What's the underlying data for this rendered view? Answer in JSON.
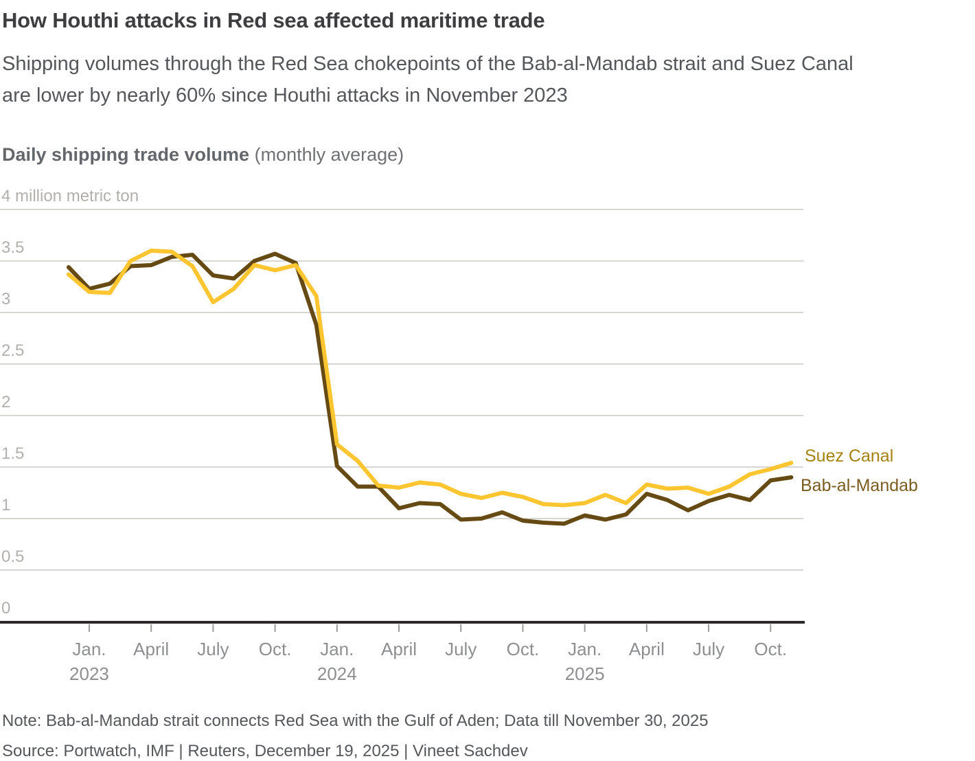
{
  "header": {
    "title": "How Houthi attacks in Red sea affected maritime trade",
    "subtitle_line1": "Shipping volumes through the Red Sea chokepoints of the Bab-al-Mandab strait and Suez Canal",
    "subtitle_line2": "are lower by nearly 60% since Houthi attacks in November 2023"
  },
  "chart_heading": {
    "bold": "Daily shipping trade volume",
    "normal": " (monthly average)"
  },
  "y_axis": {
    "labels": [
      {
        "text": "4 million metric ton",
        "value": 4
      },
      {
        "text": "3.5",
        "value": 3.5
      },
      {
        "text": "3",
        "value": 3
      },
      {
        "text": "2.5",
        "value": 2.5
      },
      {
        "text": "2",
        "value": 2
      },
      {
        "text": "1.5",
        "value": 1.5
      },
      {
        "text": "1",
        "value": 1
      },
      {
        "text": "0.5",
        "value": 0.5
      },
      {
        "text": "0",
        "value": 0
      }
    ]
  },
  "x_axis": {
    "tick_labels": [
      "Jan.",
      "April",
      "July",
      "Oct.",
      "Jan.",
      "April",
      "July",
      "Oct.",
      "Jan.",
      "April",
      "July",
      "Oct."
    ],
    "tick_month_indices": [
      1,
      4,
      7,
      10,
      13,
      16,
      19,
      22,
      25,
      28,
      31,
      34
    ],
    "years": [
      {
        "label": "2023",
        "month_index": 1
      },
      {
        "label": "2024",
        "month_index": 13
      },
      {
        "label": "2025",
        "month_index": 25
      }
    ]
  },
  "legend": [
    {
      "label": "Suez Canal",
      "color": "#a5820f"
    },
    {
      "label": "Bab-al-Mandab",
      "color": "#7a5c20"
    }
  ],
  "footer": {
    "note": "Note: Bab-al-Mandab strait connects Red Sea with the Gulf of Aden; Data till November 30, 2025",
    "source": "Source: Portwatch, IMF | Reuters, December 19, 2025  | Vineet Sachdev"
  },
  "chart_data": {
    "type": "line",
    "title": "Daily shipping trade volume (monthly average)",
    "ylabel": "million metric ton",
    "ylim": [
      0,
      4
    ],
    "y_gridlines": [
      0.5,
      1,
      1.5,
      2,
      2.5,
      3,
      3.5,
      4
    ],
    "grid": true,
    "legend_position": "right-of-line-ends",
    "x": [
      "Dec 2022",
      "Jan 2023",
      "Feb 2023",
      "Mar 2023",
      "Apr 2023",
      "May 2023",
      "Jun 2023",
      "Jul 2023",
      "Aug 2023",
      "Sep 2023",
      "Oct 2023",
      "Nov 2023",
      "Dec 2023",
      "Jan 2024",
      "Feb 2024",
      "Mar 2024",
      "Apr 2024",
      "May 2024",
      "Jun 2024",
      "Jul 2024",
      "Aug 2024",
      "Sep 2024",
      "Oct 2024",
      "Nov 2024",
      "Dec 2024",
      "Jan 2025",
      "Feb 2025",
      "Mar 2025",
      "Apr 2025",
      "May 2025",
      "Jun 2025",
      "Jul 2025",
      "Aug 2025",
      "Sep 2025",
      "Oct 2025",
      "Nov 2025"
    ],
    "series": [
      {
        "name": "Bab-al-Mandab",
        "color": "#654a14",
        "values": [
          3.44,
          3.23,
          3.28,
          3.45,
          3.46,
          3.54,
          3.56,
          3.36,
          3.33,
          3.5,
          3.57,
          3.48,
          2.88,
          1.51,
          1.31,
          1.31,
          1.1,
          1.15,
          1.14,
          0.99,
          1.0,
          1.06,
          0.98,
          0.96,
          0.95,
          1.03,
          0.99,
          1.04,
          1.24,
          1.18,
          1.08,
          1.17,
          1.23,
          1.18,
          1.37,
          1.4
        ]
      },
      {
        "name": "Suez Canal",
        "color": "#fdc52f",
        "values": [
          3.37,
          3.2,
          3.19,
          3.5,
          3.6,
          3.59,
          3.45,
          3.1,
          3.23,
          3.46,
          3.41,
          3.46,
          3.16,
          1.72,
          1.56,
          1.32,
          1.3,
          1.35,
          1.33,
          1.24,
          1.2,
          1.25,
          1.21,
          1.14,
          1.13,
          1.15,
          1.23,
          1.15,
          1.33,
          1.29,
          1.3,
          1.24,
          1.31,
          1.43,
          1.48,
          1.54
        ]
      }
    ]
  }
}
